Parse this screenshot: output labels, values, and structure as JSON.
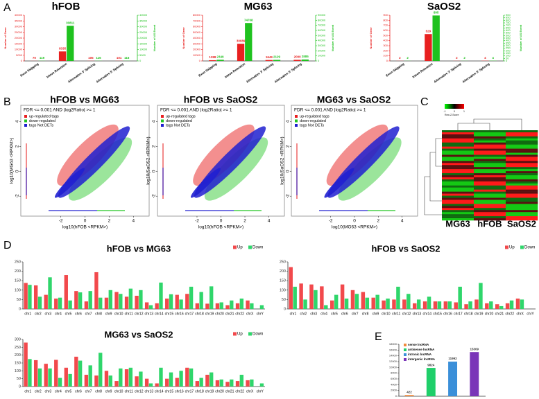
{
  "panel_labels": [
    "A",
    "B",
    "C",
    "D",
    "E"
  ],
  "chart_data": [
    {
      "type": "bar",
      "title": "hFOB",
      "categories": [
        "Exon Skipping",
        "Intron Retention",
        "Alternative 3' Splicing",
        "Alternative 5' Splicing"
      ],
      "series": [
        {
          "name": "Number of Gene",
          "color": "#e8201f",
          "values": [
            70,
            8335,
            105,
            101
          ]
        },
        {
          "name": "Number of AS Event",
          "color": "#1fc21f",
          "axis": "y2",
          "values": [
            119,
            30811,
            116,
            116
          ]
        }
      ],
      "ylim": [
        0,
        40000
      ],
      "yticks": [
        0,
        5000,
        10000,
        15000,
        20000,
        25000,
        30000,
        35000,
        40000
      ],
      "y2lim": [
        0,
        40000
      ],
      "y2ticks": [
        0,
        5000,
        10000,
        15000,
        20000,
        25000,
        30000,
        35000,
        40000
      ]
    },
    {
      "type": "bar",
      "title": "MG63",
      "categories": [
        "Exon Skipping",
        "Intron Retention",
        "Alternative 3' Splicing",
        "Alternative 5' Splicing"
      ],
      "series": [
        {
          "name": "Number of Gene",
          "color": "#e8201f",
          "values": [
            1288,
            30089,
            1649,
            2000
          ]
        },
        {
          "name": "Number of AS Event",
          "color": "#1fc21f",
          "axis": "y2",
          "values": [
            2349,
            74708,
            2129,
            2885
          ]
        }
      ],
      "ylim": [
        0,
        80000
      ],
      "yticks": [
        0,
        10000,
        20000,
        30000,
        40000,
        50000,
        60000,
        70000,
        80000
      ],
      "y2lim": [
        0,
        90000
      ],
      "y2ticks": [
        0,
        10000,
        20000,
        30000,
        40000,
        50000,
        60000,
        70000,
        80000,
        90000
      ]
    },
    {
      "type": "bar",
      "title": "SaOS2",
      "categories": [
        "Exon Skipping",
        "Intron Retention",
        "Alternative 3' Splicing",
        "Alternative 5' Splicing"
      ],
      "series": [
        {
          "name": "Number of Gene",
          "color": "#e8201f",
          "values": [
            2,
            529,
            2,
            4
          ]
        },
        {
          "name": "Number of AS Event",
          "color": "#1fc21f",
          "axis": "y2",
          "values": [
            2,
            895,
            2,
            4
          ]
        }
      ],
      "ylim": [
        0,
        900
      ],
      "yticks": [
        0,
        100,
        200,
        300,
        400,
        500,
        600,
        700,
        800,
        900
      ],
      "y2lim": [
        0,
        900
      ],
      "y2ticks": [
        0,
        50,
        100,
        150,
        200,
        250,
        300,
        350,
        400,
        450,
        500,
        550,
        600,
        650,
        700,
        750,
        800,
        850,
        900
      ]
    },
    {
      "type": "scatter",
      "title": "hFOB vs MG63",
      "xlabel": "log10(hFOB <RPKM>)",
      "ylabel": "log10(MG63 <RPKM>)",
      "annotation": "FDR <= 0.001 AND |log2Ratio| >= 1",
      "series": [
        {
          "name": "up-regulated tags",
          "color": "#e82020"
        },
        {
          "name": "down-regulated",
          "color": "#22c522"
        },
        {
          "name": "tags Not DETs",
          "color": "#2020d0"
        }
      ],
      "xlim": [
        -5.3,
        5.3
      ],
      "ylim": [
        -3.6,
        5.3
      ],
      "xticks": [
        -2,
        0,
        2,
        4
      ],
      "yticks": [
        -2,
        0,
        2,
        4
      ]
    },
    {
      "type": "scatter",
      "title": "hFOB vs SaOS2",
      "xlabel": "log10(hFOB <RPKM>)",
      "ylabel": "log10(SaOS2 <RPKM>)",
      "annotation": "FDR <= 0.001 AND |log2Ratio| >= 1",
      "series": [
        {
          "name": "up-regulated tags",
          "color": "#e82020"
        },
        {
          "name": "down-regulated",
          "color": "#22c522"
        },
        {
          "name": "tags Not DETs",
          "color": "#2020d0"
        }
      ],
      "xlim": [
        -5.3,
        5.3
      ],
      "ylim": [
        -3.6,
        5.3
      ],
      "xticks": [
        -2,
        0,
        2,
        4
      ],
      "yticks": [
        -2,
        0,
        2,
        4
      ]
    },
    {
      "type": "scatter",
      "title": "MG63 vs SaOS2",
      "xlabel": "log10(MG63 <RPKM>)",
      "ylabel": "log10(SaOS2 <RPKM>)",
      "annotation": "FDR <= 0.001 AND |log2Ratio| >= 1",
      "series": [
        {
          "name": "up-regulated tags",
          "color": "#e82020"
        },
        {
          "name": "down-regulated",
          "color": "#22c522"
        },
        {
          "name": "tags Not DETs",
          "color": "#2020d0"
        }
      ],
      "xlim": [
        -5.3,
        5.3
      ],
      "ylim": [
        -3.6,
        5.3
      ],
      "xticks": [
        -2,
        0,
        2,
        4
      ],
      "yticks": [
        -2,
        0,
        2,
        4
      ]
    },
    {
      "type": "heatmap",
      "columns": [
        "MG63",
        "hFOB",
        "SaOS2"
      ],
      "color_key_label": "Row Z-Score",
      "color_key_ticks": [
        -1,
        0,
        1
      ]
    },
    {
      "type": "bar",
      "title": "hFOB vs MG63",
      "legend": "upper right",
      "categories": [
        "chr1",
        "chr2",
        "chr3",
        "chr4",
        "chr5",
        "chr6",
        "chr7",
        "chr8",
        "chr9",
        "chr10",
        "chr11",
        "chr12",
        "chr13",
        "chr14",
        "chr15",
        "chr16",
        "chr17",
        "chr18",
        "chr19",
        "chr20",
        "chr21",
        "chr22",
        "chrX",
        "chrY"
      ],
      "series": [
        {
          "name": "Up",
          "color": "#f2494c",
          "values": [
            138,
            125,
            75,
            55,
            180,
            95,
            40,
            195,
            60,
            90,
            65,
            70,
            35,
            30,
            55,
            75,
            80,
            30,
            28,
            30,
            20,
            30,
            45,
            0
          ]
        },
        {
          "name": "Down",
          "color": "#2fd66b",
          "values": [
            128,
            65,
            168,
            60,
            45,
            88,
            95,
            60,
            100,
            80,
            108,
            100,
            20,
            140,
            78,
            50,
            118,
            90,
            120,
            35,
            45,
            55,
            30,
            20
          ]
        }
      ],
      "ylim": [
        0,
        250
      ],
      "yticks": [
        0,
        50,
        100,
        150,
        200,
        250
      ]
    },
    {
      "type": "bar",
      "title": "hFOB vs SaOS2",
      "legend": "upper right",
      "categories": [
        "chr1",
        "chr2",
        "chr3",
        "chr4",
        "chr5",
        "chr6",
        "chr7",
        "chr8",
        "chr9",
        "chr10",
        "chr11",
        "chr12",
        "chr13",
        "chr14",
        "chr15",
        "chr16",
        "chr17",
        "chr18",
        "chr19",
        "chr20",
        "chr21",
        "chr22",
        "chrX",
        "chrY"
      ],
      "series": [
        {
          "name": "Up",
          "color": "#f2494c",
          "values": [
            222,
            135,
            130,
            120,
            45,
            130,
            100,
            90,
            60,
            45,
            50,
            50,
            30,
            40,
            40,
            40,
            35,
            25,
            50,
            30,
            25,
            30,
            55,
            0
          ]
        },
        {
          "name": "Down",
          "color": "#2fd66b",
          "values": [
            118,
            50,
            100,
            20,
            75,
            55,
            80,
            60,
            75,
            55,
            118,
            80,
            50,
            65,
            40,
            40,
            118,
            40,
            138,
            40,
            15,
            45,
            50,
            0
          ]
        }
      ],
      "ylim": [
        0,
        250
      ],
      "yticks": [
        0,
        50,
        100,
        150,
        200,
        250
      ]
    },
    {
      "type": "bar",
      "title": "MG63 vs SaOS2",
      "legend": "upper right",
      "categories": [
        "chr1",
        "chr2",
        "chr3",
        "chr4",
        "chr5",
        "chr6",
        "chr7",
        "chr8",
        "chr9",
        "chr10",
        "chr11",
        "chr12",
        "chr13",
        "chr14",
        "chr15",
        "chr16",
        "chr17",
        "chr18",
        "chr19",
        "chr20",
        "chr21",
        "chr22",
        "chrX",
        "chrY"
      ],
      "series": [
        {
          "name": "Up",
          "color": "#f2494c",
          "values": [
            280,
            168,
            145,
            170,
            120,
            190,
            75,
            70,
            100,
            35,
            110,
            65,
            50,
            20,
            50,
            55,
            120,
            35,
            75,
            40,
            30,
            35,
            40,
            0
          ]
        },
        {
          "name": "Down",
          "color": "#2fd66b",
          "values": [
            175,
            115,
            115,
            55,
            80,
            165,
            135,
            215,
            70,
            115,
            120,
            95,
            20,
            120,
            90,
            100,
            115,
            55,
            90,
            45,
            45,
            75,
            45,
            20
          ]
        }
      ],
      "ylim": [
        0,
        300
      ],
      "yticks": [
        0,
        50,
        100,
        150,
        200,
        250,
        300
      ]
    },
    {
      "type": "bar",
      "legend": "upper left",
      "categories": [
        "sense lncRNA",
        "antisense lncRNA",
        "intronic lncRNA",
        "intergenic lncRNA"
      ],
      "values": [
        422,
        9824,
        11992,
        15309
      ],
      "colors": [
        "#f08a3c",
        "#1fcf6a",
        "#3a8fd9",
        "#7a35b8"
      ],
      "ylim": [
        0,
        18000
      ],
      "yticks": [
        0,
        2000,
        4000,
        6000,
        8000,
        10000,
        12000,
        14000,
        16000,
        18000
      ]
    }
  ]
}
